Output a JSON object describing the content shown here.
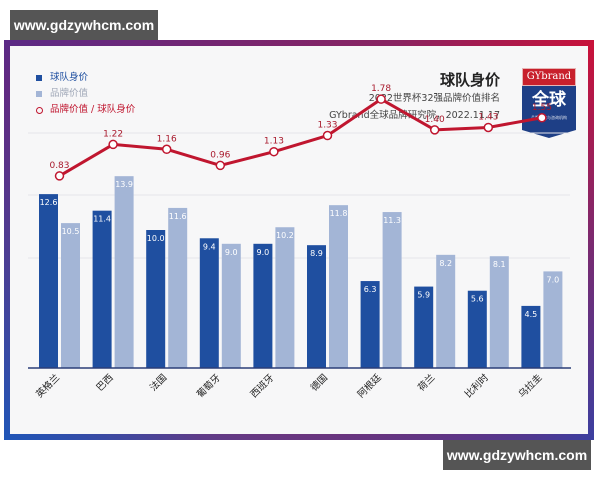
{
  "watermark": {
    "top": "www.gdzywhcm.com",
    "bottom": "www.gdzywhcm.com"
  },
  "legend": {
    "items": [
      {
        "label": "球队身价",
        "color": "#1f4fa0",
        "type": "square"
      },
      {
        "label": "品牌价值",
        "color": "#a3b5d6",
        "type": "square"
      },
      {
        "label": "品牌价值 / 球队身价",
        "color": "#c0162f",
        "type": "line-marker"
      }
    ]
  },
  "header": {
    "title": "球队身价",
    "subtitle": "2022世界杯32强品牌价值排名",
    "source": "GYbrand全球品牌研究院，2022.11.17"
  },
  "badge": {
    "top": "GYbrand",
    "main": "全球",
    "caption": "品牌研究与咨询机构"
  },
  "colors": {
    "team_value": "#1f4fa0",
    "brand_value": "#a3b5d6",
    "ratio": "#c0162f"
  },
  "chart_data": {
    "type": "bar",
    "title": "球队身价",
    "subtitle": "2022世界杯32强品牌价值排名",
    "categories": [
      "英格兰",
      "巴西",
      "法国",
      "葡萄牙",
      "西班牙",
      "德国",
      "阿根廷",
      "荷兰",
      "比利时",
      "乌拉圭"
    ],
    "series": [
      {
        "name": "球队身价",
        "kind": "bar",
        "values": [
          12.6,
          11.4,
          10.0,
          9.4,
          9.0,
          8.9,
          6.3,
          5.9,
          5.6,
          4.5
        ]
      },
      {
        "name": "品牌价值",
        "kind": "bar",
        "values": [
          10.5,
          13.9,
          11.6,
          9.0,
          10.2,
          11.8,
          11.3,
          8.2,
          8.1,
          7.0
        ]
      },
      {
        "name": "品牌价值 / 球队身价",
        "kind": "line",
        "values": [
          0.83,
          1.22,
          1.16,
          0.96,
          1.13,
          1.33,
          1.78,
          1.4,
          1.43,
          1.55
        ]
      }
    ],
    "xlabel": "",
    "ylabel": "",
    "grid": true,
    "legend_position": "top-left"
  }
}
